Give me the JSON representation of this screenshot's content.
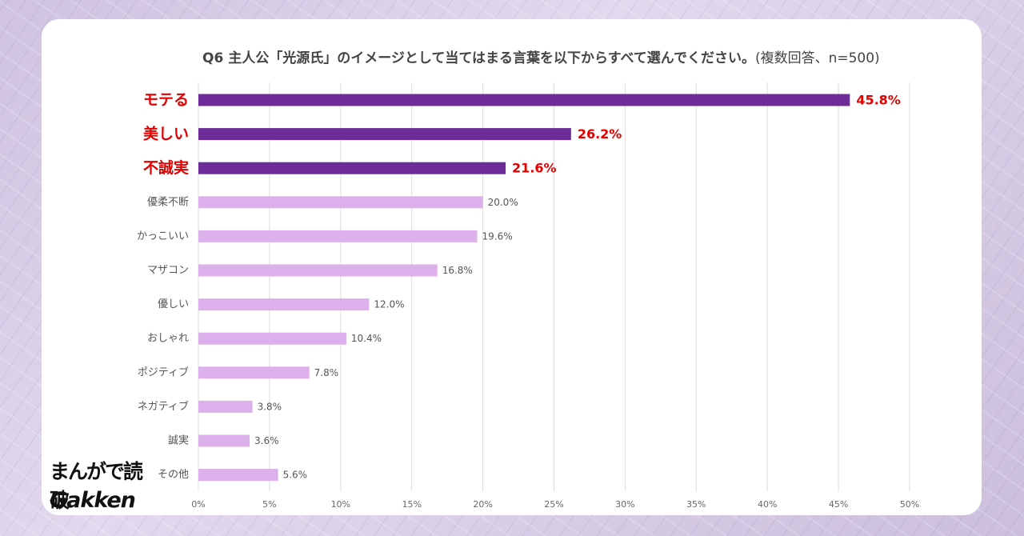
{
  "chart_data": {
    "type": "bar",
    "orientation": "horizontal",
    "title": "Q6 主人公「光源氏」のイメージとして当てはまる言葉を以下からすべて選んでください。",
    "subtitle": "(複数回答、n=500)",
    "categories": [
      "モテる",
      "美しい",
      "不誠実",
      "優柔不断",
      "かっこいい",
      "マザコン",
      "優しい",
      "おしゃれ",
      "ポジティブ",
      "ネガティブ",
      "誠実",
      "その他"
    ],
    "values": [
      45.8,
      26.2,
      21.6,
      20.0,
      19.6,
      16.8,
      12.0,
      10.4,
      7.8,
      3.8,
      3.6,
      5.6
    ],
    "value_labels": [
      "45.8%",
      "26.2%",
      "21.6%",
      "20.0%",
      "19.6%",
      "16.8%",
      "12.0%",
      "10.4%",
      "7.8%",
      "3.8%",
      "3.6%",
      "5.6%"
    ],
    "highlighted_top": 3,
    "xlim": [
      0,
      50
    ],
    "x_ticks": [
      0,
      5,
      10,
      15,
      20,
      25,
      30,
      35,
      40,
      45,
      50
    ],
    "x_tick_labels": [
      "0%",
      "5%",
      "10%",
      "15%",
      "20%",
      "25%",
      "30%",
      "35%",
      "40%",
      "45%",
      "50%"
    ],
    "xlabel": "",
    "ylabel": "",
    "grid": "vertical",
    "legend": "none",
    "colors": {
      "highlight_bar": "#6e2c98",
      "normal_bar": "#dcb0ea",
      "highlight_text": "#e00000",
      "label_text": "#555555",
      "grid": "#dddddd"
    }
  },
  "logo": {
    "line1": "まんがで読破",
    "line2": "Gakken"
  }
}
